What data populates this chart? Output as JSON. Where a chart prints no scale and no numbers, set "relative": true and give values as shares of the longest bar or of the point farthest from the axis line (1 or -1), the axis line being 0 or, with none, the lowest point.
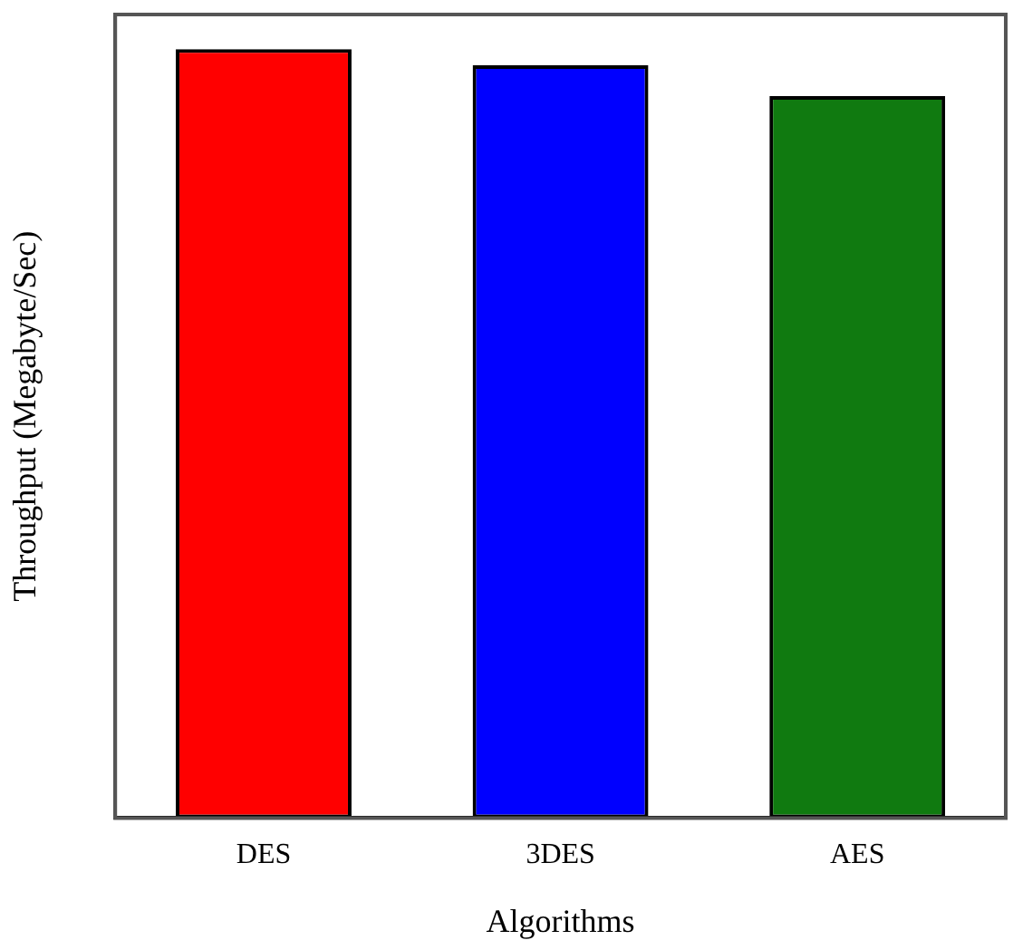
{
  "chart_data": {
    "type": "bar",
    "xlabel": "Algorithms",
    "ylabel": "Throughput (Megabyte/Sec)",
    "categories": [
      "DES",
      "3DES",
      "AES"
    ],
    "relative": true,
    "series": [
      {
        "colors": [
          "#ff0000",
          "#0000ff",
          "#107a10"
        ],
        "values": [
          1,
          0.979,
          0.939
        ]
      }
    ]
  }
}
